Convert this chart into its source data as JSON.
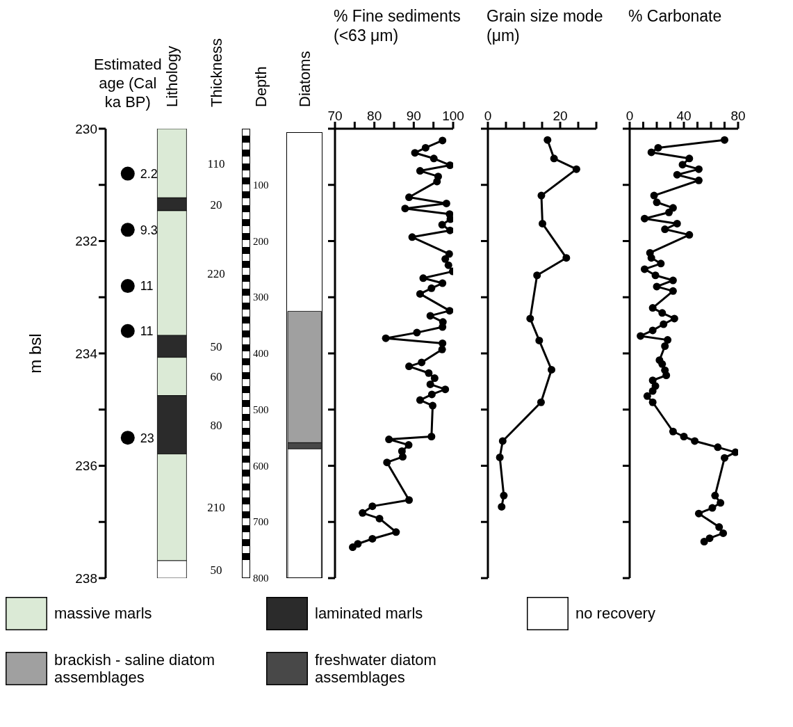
{
  "chart_data": [
    {
      "type": "scatter",
      "ylabel": "m bsl",
      "categories": [
        "Estimated age (Cal ka BP)",
        "Lithology",
        "Thickness",
        "Depth",
        "Diatoms"
      ],
      "marker": "circle",
      "ylim": [
        238,
        230
      ],
      "yticks": [
        230,
        {
          "value": 231,
          "label": null
        },
        232,
        {
          "value": 233,
          "label": null
        },
        234,
        {
          "value": 235,
          "label": null
        },
        236,
        {
          "value": 237,
          "label": null
        },
        238
      ],
      "y2lim": [
        800,
        0
      ],
      "y2ticks": [
        100,
        200,
        300,
        400,
        500,
        600,
        700,
        800
      ],
      "legend": "bottom",
      "series": [
        {
          "color": "#000000",
          "x": [
            "Estimated age (Cal ka BP)",
            "Estimated age (Cal ka BP)",
            "Estimated age (Cal ka BP)",
            "Estimated age (Cal ka BP)",
            "Estimated age (Cal ka BP)"
          ],
          "values": [
            230.8,
            231.8,
            232.8,
            233.6,
            235.5
          ]
        }
      ],
      "bands": [
        {
          "axis": "y",
          "from": 230,
          "to": 231.23,
          "label": "massive marls",
          "color": "#dbead6"
        },
        {
          "axis": "y",
          "from": 231.23,
          "to": 231.46,
          "label": "laminated marls",
          "color": "#2b2b2b"
        },
        {
          "axis": "y",
          "from": 231.46,
          "to": 233.68,
          "color": "#dbead6"
        },
        {
          "axis": "y",
          "from": 233.68,
          "to": 234.07,
          "color": "#2b2b2b"
        },
        {
          "axis": "y",
          "from": 234.07,
          "to": 234.75,
          "color": "#dbead6"
        },
        {
          "axis": "y",
          "from": 234.75,
          "to": 235.79,
          "color": "#2b2b2b"
        },
        {
          "axis": "y",
          "from": 235.79,
          "to": 237.69,
          "color": "#dbead6"
        },
        {
          "axis": "y",
          "from": 237.69,
          "to": 238,
          "label": "no recovery",
          "color": "#ffffff"
        },
        {
          "axis": "y2",
          "from": 325,
          "to": 559,
          "label": "brackish - saline diatom assemblages",
          "color": "#a0a0a0"
        },
        {
          "axis": "y2",
          "from": 559,
          "to": 570,
          "label": "freshwater diatom assemblages",
          "color": "#484848"
        },
        {
          "axis": "y2",
          "from": 570,
          "to": 800,
          "color": "#ffffff"
        }
      ],
      "annotations": [
        {
          "text": "2.2",
          "x": "Estimated age (Cal ka BP)",
          "y": 230.8
        },
        {
          "text": "9.3",
          "x": "Estimated age (Cal ka BP)",
          "y": 231.8
        },
        {
          "text": "11",
          "x": "Estimated age (Cal ka BP)",
          "y": 232.8
        },
        {
          "text": "11",
          "x": "Estimated age (Cal ka BP)",
          "y": 233.6
        },
        {
          "text": "23",
          "x": "Estimated age (Cal ka BP)",
          "y": 235.5
        },
        "110",
        "20",
        "220",
        "50",
        "60",
        "80",
        "210",
        "50"
      ]
    },
    {
      "type": "line",
      "xlabel": "% Fine sediments (<63 μm)",
      "xlim": [
        70,
        100
      ],
      "xticks": [
        70,
        {
          "value": 75,
          "label": null
        },
        80,
        {
          "value": 85,
          "label": null
        },
        90,
        {
          "value": 95,
          "label": null
        },
        100
      ],
      "ylim": [
        238,
        230
      ],
      "yticks": [
        {
          "value": 230,
          "label": null
        },
        {
          "value": 231,
          "label": null
        },
        {
          "value": 232,
          "label": null
        },
        {
          "value": 233,
          "label": null
        },
        {
          "value": 234,
          "label": null
        },
        {
          "value": 235,
          "label": null
        },
        {
          "value": 236,
          "label": null
        },
        {
          "value": 237,
          "label": null
        },
        {
          "value": 238,
          "label": null
        }
      ],
      "tick_labels": "x",
      "marker": "circle",
      "series": [
        {
          "color": "#000000",
          "x": [
            97.3,
            93.0,
            90.3,
            95.1,
            99.2,
            91.6,
            96.2,
            95.9,
            88.8,
            98.3,
            87.8,
            99.1,
            99.3,
            97.2,
            99.2,
            89.6,
            99.0,
            98.0,
            98.8,
            99.9,
            92.4,
            97.3,
            94.5,
            91.6,
            99.1,
            94.2,
            97.4,
            97.3,
            90.8,
            82.9,
            97.3,
            97.2,
            92.0,
            88.8,
            93.8,
            95.3,
            94.2,
            98.0,
            94.6,
            91.6,
            94.8,
            94.5,
            83.7,
            88.7,
            87.0,
            87.2,
            83.2,
            88.8,
            79.5,
            77.0,
            81.3,
            85.5,
            79.5,
            75.8,
            74.5
          ],
          "values": [
            230.21,
            230.34,
            230.43,
            230.53,
            230.65,
            230.75,
            230.85,
            230.94,
            231.22,
            231.33,
            231.42,
            231.52,
            231.61,
            231.71,
            231.81,
            231.93,
            232.23,
            232.32,
            232.43,
            232.54,
            232.66,
            232.75,
            232.84,
            232.94,
            233.24,
            233.33,
            233.44,
            233.53,
            233.63,
            233.73,
            233.82,
            233.93,
            234.16,
            234.23,
            234.35,
            234.44,
            234.55,
            234.64,
            234.73,
            234.83,
            234.93,
            235.48,
            235.53,
            235.63,
            235.74,
            235.84,
            235.94,
            236.61,
            236.72,
            236.84,
            236.94,
            237.18,
            237.3,
            237.39,
            237.45
          ]
        }
      ]
    },
    {
      "type": "line",
      "xlabel": "Grain size mode (μm)",
      "xlim": [
        0,
        30
      ],
      "xticks": [
        0,
        {
          "value": 5,
          "label": null
        },
        {
          "value": 10,
          "label": null
        },
        {
          "value": 15,
          "label": null
        },
        20,
        {
          "value": 25,
          "label": null
        },
        {
          "value": 30,
          "label": null
        }
      ],
      "ylim": [
        238,
        230
      ],
      "yticks": [
        {
          "value": 230,
          "label": null
        },
        {
          "value": 231,
          "label": null
        },
        {
          "value": 232,
          "label": null
        },
        {
          "value": 233,
          "label": null
        },
        {
          "value": 234,
          "label": null
        },
        {
          "value": 235,
          "label": null
        },
        {
          "value": 236,
          "label": null
        },
        {
          "value": 237,
          "label": null
        },
        {
          "value": 238,
          "label": null
        }
      ],
      "tick_labels": "x",
      "marker": "circle",
      "series": [
        {
          "color": "#000000",
          "x": [
            16.5,
            18.3,
            24.5,
            14.8,
            15.1,
            21.7,
            13.6,
            11.7,
            14.2,
            17.6,
            14.7,
            4.1,
            3.3,
            4.4,
            3.8
          ],
          "values": [
            230.2,
            230.53,
            230.72,
            231.19,
            231.69,
            232.3,
            232.61,
            233.38,
            233.77,
            234.29,
            234.87,
            235.56,
            235.85,
            236.53,
            236.73
          ]
        }
      ]
    },
    {
      "type": "line",
      "xlabel": "% Carbonate",
      "xlim": [
        0,
        80
      ],
      "xticks": [
        0,
        {
          "value": 10,
          "label": null
        },
        {
          "value": 20,
          "label": null
        },
        {
          "value": 30,
          "label": null
        },
        40,
        {
          "value": 50,
          "label": null
        },
        {
          "value": 60,
          "label": null
        },
        {
          "value": 70,
          "label": null
        },
        80
      ],
      "ylim": [
        238,
        230
      ],
      "yticks": [
        {
          "value": 230,
          "label": null
        },
        {
          "value": 231,
          "label": null
        },
        {
          "value": 232,
          "label": null
        },
        {
          "value": 233,
          "label": null
        },
        {
          "value": 234,
          "label": null
        },
        {
          "value": 235,
          "label": null
        },
        {
          "value": 236,
          "label": null
        },
        {
          "value": 237,
          "label": null
        },
        {
          "value": 238,
          "label": null
        }
      ],
      "tick_labels": "x",
      "marker": "circle",
      "series": [
        {
          "color": "#000000",
          "x": [
            70,
            21,
            16,
            44,
            39,
            51,
            35,
            51,
            18,
            20,
            32,
            29,
            11,
            35,
            26,
            44,
            15,
            16,
            23,
            11,
            19,
            32,
            20,
            32,
            17,
            24,
            33,
            25,
            17,
            8,
            28,
            26,
            22,
            24,
            26,
            27,
            17,
            19,
            17,
            13,
            17,
            32,
            40,
            48,
            65,
            78,
            70,
            63,
            67,
            61,
            51,
            66,
            69,
            59,
            55
          ],
          "values": [
            230.2,
            230.34,
            230.42,
            230.53,
            230.64,
            230.72,
            230.82,
            230.92,
            231.19,
            231.31,
            231.41,
            231.49,
            231.6,
            231.69,
            231.79,
            231.89,
            232.21,
            232.3,
            232.4,
            232.5,
            232.61,
            232.7,
            232.81,
            232.89,
            233.19,
            233.28,
            233.38,
            233.48,
            233.59,
            233.69,
            233.76,
            233.87,
            234.12,
            234.19,
            234.3,
            234.39,
            234.48,
            234.58,
            234.67,
            234.76,
            234.87,
            235.39,
            235.48,
            235.56,
            235.67,
            235.76,
            235.86,
            236.53,
            236.66,
            236.75,
            236.85,
            237.09,
            237.2,
            237.29,
            237.35
          ]
        }
      ]
    }
  ]
}
